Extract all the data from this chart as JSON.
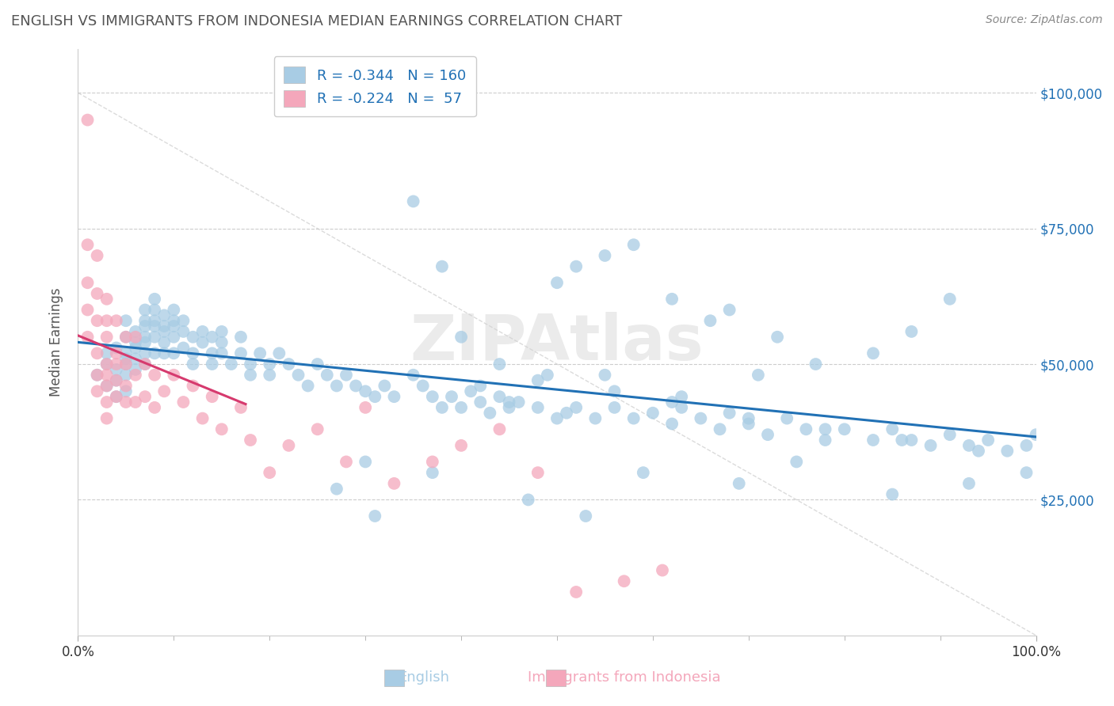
{
  "title": "ENGLISH VS IMMIGRANTS FROM INDONESIA MEDIAN EARNINGS CORRELATION CHART",
  "source": "Source: ZipAtlas.com",
  "ylabel": "Median Earnings",
  "xmin": 0.0,
  "xmax": 1.0,
  "ymin": 0,
  "ymax": 108000,
  "blue_R": -0.344,
  "blue_N": 160,
  "pink_R": -0.224,
  "pink_N": 57,
  "blue_color": "#a8cce4",
  "pink_color": "#f4a7bb",
  "blue_line_color": "#2171b5",
  "pink_line_color": "#d63a6e",
  "watermark": "ZIPAtlas",
  "bg_color": "#ffffff",
  "title_color": "#555555",
  "legend_text_color": "#2171b5",
  "blue_scatter_x": [
    0.02,
    0.03,
    0.03,
    0.03,
    0.04,
    0.04,
    0.04,
    0.04,
    0.05,
    0.05,
    0.05,
    0.05,
    0.05,
    0.05,
    0.05,
    0.06,
    0.06,
    0.06,
    0.06,
    0.06,
    0.07,
    0.07,
    0.07,
    0.07,
    0.07,
    0.07,
    0.07,
    0.08,
    0.08,
    0.08,
    0.08,
    0.08,
    0.08,
    0.09,
    0.09,
    0.09,
    0.09,
    0.09,
    0.1,
    0.1,
    0.1,
    0.1,
    0.1,
    0.11,
    0.11,
    0.11,
    0.12,
    0.12,
    0.12,
    0.13,
    0.13,
    0.14,
    0.14,
    0.14,
    0.15,
    0.15,
    0.15,
    0.16,
    0.17,
    0.17,
    0.18,
    0.18,
    0.19,
    0.2,
    0.2,
    0.21,
    0.22,
    0.23,
    0.24,
    0.25,
    0.26,
    0.27,
    0.28,
    0.29,
    0.3,
    0.31,
    0.32,
    0.33,
    0.35,
    0.36,
    0.37,
    0.38,
    0.39,
    0.4,
    0.41,
    0.42,
    0.43,
    0.44,
    0.45,
    0.46,
    0.48,
    0.5,
    0.52,
    0.54,
    0.56,
    0.58,
    0.6,
    0.62,
    0.63,
    0.65,
    0.67,
    0.68,
    0.7,
    0.72,
    0.74,
    0.76,
    0.78,
    0.8,
    0.83,
    0.85,
    0.87,
    0.89,
    0.91,
    0.93,
    0.95,
    0.97,
    0.99,
    1.0,
    0.35,
    0.55,
    0.5,
    0.52,
    0.58,
    0.62,
    0.66,
    0.68,
    0.73,
    0.77,
    0.55,
    0.48,
    0.42,
    0.63,
    0.71,
    0.83,
    0.87,
    0.91,
    0.38,
    0.53,
    0.47,
    0.59,
    0.69,
    0.75,
    0.85,
    0.93,
    0.99,
    0.27,
    0.31,
    0.4,
    0.44,
    0.49,
    0.56,
    0.62,
    0.7,
    0.78,
    0.86,
    0.94,
    0.3,
    0.37,
    0.45,
    0.51
  ],
  "blue_scatter_y": [
    48000,
    46000,
    50000,
    52000,
    47000,
    53000,
    44000,
    49000,
    55000,
    58000,
    51000,
    45000,
    48000,
    50000,
    52000,
    54000,
    56000,
    53000,
    49000,
    51000,
    58000,
    55000,
    52000,
    57000,
    60000,
    50000,
    54000,
    62000,
    58000,
    55000,
    60000,
    52000,
    57000,
    56000,
    54000,
    59000,
    52000,
    57000,
    60000,
    55000,
    58000,
    52000,
    57000,
    56000,
    53000,
    58000,
    50000,
    55000,
    52000,
    54000,
    56000,
    52000,
    50000,
    55000,
    54000,
    52000,
    56000,
    50000,
    55000,
    52000,
    50000,
    48000,
    52000,
    50000,
    48000,
    52000,
    50000,
    48000,
    46000,
    50000,
    48000,
    46000,
    48000,
    46000,
    45000,
    44000,
    46000,
    44000,
    48000,
    46000,
    44000,
    42000,
    44000,
    42000,
    45000,
    43000,
    41000,
    44000,
    42000,
    43000,
    42000,
    40000,
    42000,
    40000,
    42000,
    40000,
    41000,
    39000,
    42000,
    40000,
    38000,
    41000,
    39000,
    37000,
    40000,
    38000,
    36000,
    38000,
    36000,
    38000,
    36000,
    35000,
    37000,
    35000,
    36000,
    34000,
    35000,
    37000,
    80000,
    70000,
    65000,
    68000,
    72000,
    62000,
    58000,
    60000,
    55000,
    50000,
    48000,
    47000,
    46000,
    44000,
    48000,
    52000,
    56000,
    62000,
    68000,
    22000,
    25000,
    30000,
    28000,
    32000,
    26000,
    28000,
    30000,
    27000,
    22000,
    55000,
    50000,
    48000,
    45000,
    43000,
    40000,
    38000,
    36000,
    34000,
    32000,
    30000,
    43000,
    41000
  ],
  "pink_scatter_x": [
    0.01,
    0.01,
    0.01,
    0.01,
    0.01,
    0.02,
    0.02,
    0.02,
    0.02,
    0.02,
    0.02,
    0.03,
    0.03,
    0.03,
    0.03,
    0.03,
    0.03,
    0.03,
    0.03,
    0.04,
    0.04,
    0.04,
    0.04,
    0.04,
    0.05,
    0.05,
    0.05,
    0.05,
    0.06,
    0.06,
    0.06,
    0.07,
    0.07,
    0.08,
    0.08,
    0.09,
    0.1,
    0.11,
    0.12,
    0.13,
    0.14,
    0.15,
    0.17,
    0.18,
    0.2,
    0.22,
    0.25,
    0.28,
    0.3,
    0.33,
    0.37,
    0.4,
    0.44,
    0.48,
    0.52,
    0.57,
    0.61
  ],
  "pink_scatter_y": [
    95000,
    72000,
    65000,
    60000,
    55000,
    70000,
    63000,
    58000,
    52000,
    48000,
    45000,
    62000,
    58000,
    55000,
    50000,
    46000,
    43000,
    40000,
    48000,
    58000,
    52000,
    47000,
    44000,
    50000,
    55000,
    50000,
    46000,
    43000,
    55000,
    48000,
    43000,
    50000,
    44000,
    48000,
    42000,
    45000,
    48000,
    43000,
    46000,
    40000,
    44000,
    38000,
    42000,
    36000,
    30000,
    35000,
    38000,
    32000,
    42000,
    28000,
    32000,
    35000,
    38000,
    30000,
    8000,
    10000,
    12000
  ]
}
